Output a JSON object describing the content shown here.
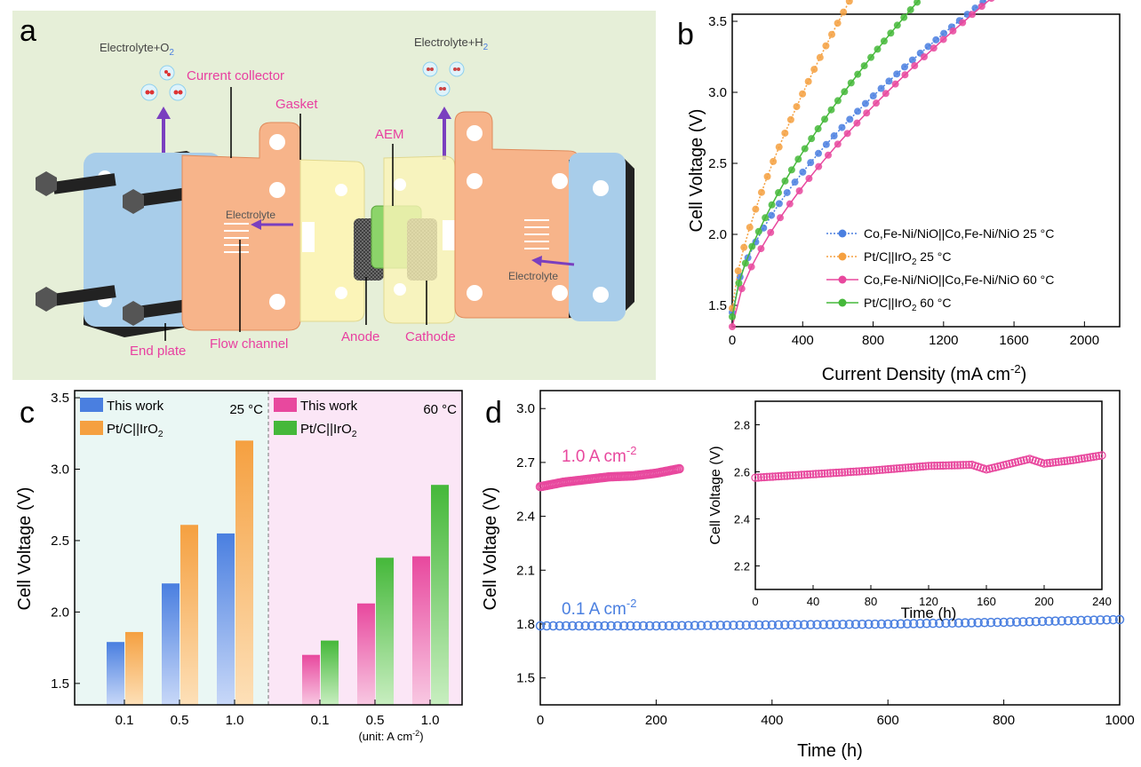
{
  "colors": {
    "blue": "#4a7fe0",
    "orange": "#f5a040",
    "magenta": "#e8489e",
    "green": "#45b83a",
    "pink_text": "#e83fa0",
    "panel_a_bg": "#e6efd8"
  },
  "panel_a": {
    "letter": "a",
    "electrolyte_o2": "Electrolyte+O",
    "o2_sub": "2",
    "electrolyte_h2": "Electrolyte+H",
    "h2_sub": "2",
    "labels": {
      "current_collector": "Current collector",
      "gasket": "Gasket",
      "aem": "AEM",
      "electrolyte_left": "Electrolyte",
      "electrolyte_right": "Electrolyte",
      "end_plate": "End plate",
      "flow_channel": "Flow channel",
      "anode": "Anode",
      "cathode": "Cathode"
    }
  },
  "chart_data": [
    {
      "panel": "b",
      "type": "line",
      "title": "",
      "xlabel": "Current Density (mA cm",
      "xlabel_sup": "-2",
      "xlabel_end": ")",
      "ylabel": "Cell Voltage (V)",
      "xlim": [
        0,
        2200
      ],
      "ylim": [
        1.35,
        3.55
      ],
      "xticks": [
        "0",
        "400",
        "800",
        "1200",
        "1600",
        "2000"
      ],
      "yticks": [
        "1.5",
        "2.0",
        "2.5",
        "3.0",
        "3.5"
      ],
      "series": [
        {
          "name": "Co,Fe-Ni/NiO||Co,Fe-Ni/NiO 25 °C",
          "color": "#4a7fe0",
          "dashed": true,
          "v0": 1.45,
          "k": 0.0232,
          "p": 0.626,
          "xmax": 1780
        },
        {
          "name": "Pt/C||IrO",
          "name_sub": "2",
          "name_tail": " 25 °C",
          "color": "#f5a040",
          "dashed": true,
          "v0": 1.48,
          "k": 0.0224,
          "p": 0.703,
          "xmax": 1330
        },
        {
          "name": "Co,Fe-Ni/NiO||Co,Fe-Ni/NiO 60 °C",
          "color": "#e8489e",
          "dashed": false,
          "v0": 1.35,
          "k": 0.0196,
          "p": 0.654,
          "xmax": 2180
        },
        {
          "name": "Pt/C||IrO",
          "name_sub": "2",
          "name_tail": " 60 °C",
          "color": "#45b83a",
          "dashed": false,
          "v0": 1.42,
          "k": 0.0208,
          "p": 0.671,
          "xmax": 1500
        }
      ]
    },
    {
      "panel": "c",
      "type": "bar",
      "ylabel": "Cell Voltage (V)",
      "ylim": [
        1.35,
        3.55
      ],
      "yticks": [
        "1.5",
        "2.0",
        "2.5",
        "3.0",
        "3.5"
      ],
      "categories": [
        "0.1",
        "0.5",
        "1.0"
      ],
      "unit_note": "(unit: A cm",
      "unit_sup": "-2",
      "unit_end": ")",
      "groups": [
        {
          "label": "25 °C",
          "series": [
            {
              "name": "This work",
              "color": "#4a7fe0",
              "values": [
                1.79,
                2.2,
                2.55
              ]
            },
            {
              "name": "Pt/C||IrO",
              "name_sub": "2",
              "color": "#f5a040",
              "values": [
                1.86,
                2.61,
                3.2
              ]
            }
          ]
        },
        {
          "label": "60 °C",
          "series": [
            {
              "name": "This work",
              "color": "#e8489e",
              "values": [
                1.7,
                2.06,
                2.39
              ]
            },
            {
              "name": "Pt/C||IrO",
              "name_sub": "2",
              "color": "#45b83a",
              "values": [
                1.8,
                2.38,
                2.89
              ]
            }
          ]
        }
      ]
    },
    {
      "panel": "d",
      "type": "scatter",
      "xlabel": "Time (h)",
      "ylabel": "Cell Voltage (V)",
      "xlim": [
        0,
        1000
      ],
      "ylim": [
        1.35,
        3.1
      ],
      "xticks": [
        "0",
        "200",
        "400",
        "600",
        "800",
        "1000"
      ],
      "yticks": [
        "1.5",
        "1.8",
        "2.1",
        "2.4",
        "2.7",
        "3.0"
      ],
      "series": [
        {
          "name": "1.0 A cm",
          "name_sup": "-2",
          "color": "#e8489e",
          "x": [
            0,
            40,
            80,
            120,
            160,
            200,
            240
          ],
          "y": [
            2.565,
            2.59,
            2.605,
            2.62,
            2.625,
            2.64,
            2.665
          ]
        },
        {
          "name": "0.1 A cm",
          "name_sup": "-2",
          "color": "#4a7fe0",
          "x": [
            0,
            200,
            400,
            600,
            800,
            1000
          ],
          "y": [
            1.79,
            1.79,
            1.795,
            1.8,
            1.81,
            1.825
          ]
        }
      ],
      "inset": {
        "xlabel": "Time (h)",
        "ylabel": "Cell Voltage (V)",
        "xlim": [
          0,
          240
        ],
        "ylim": [
          2.1,
          2.9
        ],
        "xticks": [
          "0",
          "40",
          "80",
          "120",
          "160",
          "200",
          "240"
        ],
        "yticks": [
          "2.2",
          "2.4",
          "2.6",
          "2.8"
        ],
        "series": [
          {
            "color": "#e8489e",
            "x": [
              0,
              40,
              80,
              120,
              150,
              160,
              180,
              190,
              200,
              220,
              240
            ],
            "y": [
              2.575,
              2.59,
              2.605,
              2.625,
              2.63,
              2.61,
              2.64,
              2.655,
              2.635,
              2.65,
              2.67
            ]
          }
        ]
      }
    }
  ]
}
